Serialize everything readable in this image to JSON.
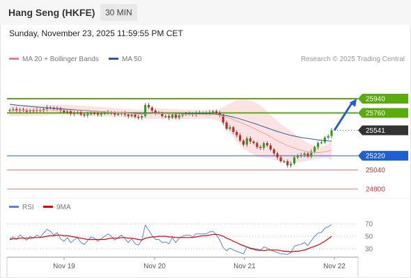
{
  "header": {
    "title": "Hang Seng (HKFE)",
    "timeframe": "30 MIN"
  },
  "datetime": "Sunday, November 23, 2025 11:59:55 PM CET",
  "legend": {
    "bollinger": {
      "label": "MA 20 + Bollinger Bands",
      "color": "#f08080"
    },
    "ma50": {
      "label": "MA 50",
      "color": "#2c5aa0"
    }
  },
  "research_note": "Research © 2025 Trading Central",
  "rsi_legend": {
    "rsi": {
      "label": "RSI",
      "color": "#5a82d6"
    },
    "ma9": {
      "label": "9MA",
      "color": "#e00000"
    }
  },
  "colors": {
    "resistance": "#5aab0c",
    "pivot": "#1f5fd0",
    "support": "#e57373",
    "last": "#333333",
    "candle_up": "#2e9e1e",
    "candle_down": "#c62828",
    "arrow": "#1f5fd0"
  },
  "chart_data": [
    {
      "type": "candlestick",
      "title": "",
      "x_ticks": [
        "Nov 19",
        "Nov 20",
        "Nov 21",
        "Nov 22"
      ],
      "ylim": [
        24750,
        26000
      ],
      "levels": [
        {
          "value": 25940,
          "label": "25940",
          "kind": "resistance"
        },
        {
          "value": 25760,
          "label": "25760",
          "kind": "resistance"
        },
        {
          "value": 25541,
          "label": "25541",
          "kind": "last"
        },
        {
          "value": 25220,
          "label": "25220",
          "kind": "pivot"
        },
        {
          "value": 25040,
          "label": "25040",
          "kind": "support"
        },
        {
          "value": 24800,
          "label": "24800",
          "kind": "support"
        }
      ],
      "close": [
        25800,
        25810,
        25790,
        25805,
        25790,
        25780,
        25795,
        25785,
        25800,
        25790,
        25810,
        25830,
        25825,
        25810,
        25820,
        25790,
        25770,
        25780,
        25750,
        25760,
        25770,
        25740,
        25730,
        25745,
        25760,
        25755,
        25740,
        25750,
        25760,
        25770,
        25760,
        25740,
        25750,
        25760,
        25740,
        25720,
        25740,
        25710,
        25700,
        25720,
        25860,
        25830,
        25790,
        25760,
        25760,
        25720,
        25720,
        25700,
        25740,
        25700,
        25730,
        25740,
        25750,
        25750,
        25740,
        25760,
        25760,
        25760,
        25760,
        25770,
        25780,
        25760,
        25730,
        25640,
        25560,
        25580,
        25520,
        25480,
        25410,
        25360,
        25440,
        25400,
        25380,
        25330,
        25320,
        25380,
        25350,
        25300,
        25250,
        25200,
        25150,
        25150,
        25100,
        25120,
        25200,
        25220,
        25230,
        25250,
        25210,
        25270,
        25330,
        25380,
        25390,
        25450,
        25470,
        25541
      ],
      "ma20": [
        25790,
        25790,
        25791,
        25792,
        25793,
        25793,
        25793,
        25793,
        25793,
        25794,
        25795,
        25797,
        25798,
        25799,
        25800,
        25800,
        25799,
        25798,
        25796,
        25795,
        25793,
        25791,
        25788,
        25785,
        25783,
        25780,
        25778,
        25776,
        25773,
        25771,
        25768,
        25765,
        25763,
        25761,
        25758,
        25755,
        25752,
        25750,
        25747,
        25745,
        25748,
        25750,
        25751,
        25752,
        25752,
        25752,
        25751,
        25750,
        25749,
        25747,
        25746,
        25745,
        25744,
        25743,
        25742,
        25742,
        25742,
        25742,
        25742,
        25743,
        25742,
        25738,
        25731,
        25720,
        25706,
        25693,
        25677,
        25659,
        25642,
        25622,
        25606,
        25588,
        25568,
        25545,
        25523,
        25504,
        25484,
        25460,
        25436,
        25411,
        25387,
        25368,
        25349,
        25331,
        25317,
        25303,
        25290,
        25280,
        25270,
        25263,
        25260,
        25260,
        25263,
        25270,
        25278,
        25290
      ],
      "bb_upper": [
        25860,
        25860,
        25861,
        25862,
        25863,
        25863,
        25862,
        25861,
        25860,
        25860,
        25861,
        25862,
        25863,
        25864,
        25865,
        25865,
        25864,
        25862,
        25860,
        25858,
        25856,
        25853,
        25850,
        25846,
        25843,
        25840,
        25837,
        25834,
        25831,
        25828,
        25825,
        25822,
        25819,
        25816,
        25813,
        25810,
        25807,
        25804,
        25801,
        25799,
        25810,
        25815,
        25817,
        25818,
        25818,
        25817,
        25815,
        25813,
        25811,
        25809,
        25807,
        25805,
        25804,
        25803,
        25802,
        25802,
        25802,
        25802,
        25802,
        25803,
        25804,
        25805,
        25810,
        25830,
        25860,
        25880,
        25900,
        25920,
        25935,
        25940,
        25930,
        25920,
        25900,
        25880,
        25850,
        25820,
        25780,
        25740,
        25700,
        25660,
        25620,
        25590,
        25560,
        25530,
        25500,
        25470,
        25440,
        25410,
        25380,
        25360,
        25345,
        25340,
        25342,
        25350,
        25370,
        25420
      ],
      "bb_lower": [
        25720,
        25720,
        25721,
        25722,
        25723,
        25723,
        25724,
        25725,
        25726,
        25728,
        25729,
        25732,
        25733,
        25734,
        25735,
        25735,
        25734,
        25734,
        25732,
        25732,
        25730,
        25729,
        25726,
        25724,
        25723,
        25720,
        25719,
        25718,
        25715,
        25714,
        25711,
        25708,
        25707,
        25706,
        25703,
        25700,
        25697,
        25696,
        25693,
        25691,
        25686,
        25685,
        25685,
        25686,
        25686,
        25687,
        25687,
        25687,
        25687,
        25685,
        25685,
        25685,
        25684,
        25683,
        25682,
        25682,
        25682,
        25682,
        25682,
        25683,
        25680,
        25671,
        25652,
        25610,
        25552,
        25506,
        25454,
        25398,
        25349,
        25304,
        25282,
        25256,
        25236,
        25210,
        25196,
        25188,
        25188,
        25180,
        25172,
        25162,
        25154,
        25146,
        25138,
        25132,
        25134,
        25136,
        25140,
        25150,
        25160,
        25166,
        25175,
        25180,
        25184,
        25190,
        25186,
        25160
      ],
      "ma50": [
        25870,
        25865,
        25860,
        25855,
        25851,
        25847,
        25843,
        25839,
        25835,
        25831,
        25828,
        25825,
        25822,
        25819,
        25816,
        25813,
        25810,
        25807,
        25804,
        25801,
        25798,
        25795,
        25792,
        25789,
        25786,
        25783,
        25780,
        25777,
        25774,
        25771,
        25768,
        25766,
        25764,
        25762,
        25760,
        25758,
        25757,
        25756,
        25755,
        25754,
        25754,
        25754,
        25754,
        25753,
        25753,
        25753,
        25752,
        25752,
        25751,
        25751,
        25750,
        25750,
        25750,
        25750,
        25750,
        25750,
        25750,
        25750,
        25749,
        25748,
        25747,
        25744,
        25740,
        25734,
        25726,
        25717,
        25707,
        25696,
        25684,
        25671,
        25658,
        25644,
        25630,
        25616,
        25601,
        25586,
        25571,
        25556,
        25541,
        25527,
        25513,
        25500,
        25488,
        25477,
        25468,
        25459,
        25451,
        25444,
        25438,
        25432,
        25426,
        25420,
        25416,
        25412,
        25408,
        25405
      ],
      "forecast_arrow": {
        "from": 25541,
        "to": 25940
      }
    },
    {
      "type": "line",
      "title": "RSI",
      "ylim": [
        20,
        80
      ],
      "y_ticks": [
        70,
        50,
        30
      ],
      "x_ticks": [
        "Nov 19",
        "Nov 20",
        "Nov 21",
        "Nov 22"
      ],
      "series": [
        {
          "name": "RSI",
          "values": [
            46,
            49,
            45,
            52,
            48,
            44,
            50,
            47,
            52,
            49,
            55,
            61,
            58,
            52,
            56,
            46,
            42,
            48,
            40,
            44,
            48,
            40,
            37,
            43,
            49,
            47,
            42,
            46,
            50,
            54,
            50,
            44,
            48,
            52,
            46,
            40,
            46,
            38,
            36,
            44,
            68,
            60,
            51,
            45,
            45,
            40,
            41,
            38,
            48,
            40,
            47,
            50,
            52,
            52,
            49,
            54,
            54,
            54,
            54,
            57,
            58,
            52,
            44,
            32,
            27,
            31,
            28,
            26,
            24,
            22,
            33,
            30,
            29,
            27,
            27,
            33,
            31,
            28,
            26,
            24,
            22,
            22,
            21,
            24,
            34,
            36,
            37,
            40,
            35,
            43,
            50,
            55,
            56,
            63,
            65,
            69
          ]
        },
        {
          "name": "9MA",
          "values": [
            45,
            46,
            46,
            47,
            47,
            47,
            47,
            48,
            48,
            48,
            49,
            50,
            51,
            51,
            52,
            52,
            51,
            51,
            50,
            49,
            48,
            47,
            46,
            45,
            45,
            45,
            45,
            45,
            45,
            46,
            47,
            47,
            47,
            48,
            48,
            47,
            47,
            46,
            45,
            44,
            47,
            48,
            49,
            49,
            50,
            50,
            50,
            49,
            49,
            48,
            48,
            48,
            48,
            48,
            48,
            49,
            50,
            51,
            51,
            52,
            53,
            53,
            52,
            50,
            47,
            45,
            42,
            40,
            37,
            35,
            33,
            31,
            30,
            29,
            28,
            27,
            28,
            28,
            28,
            28,
            27,
            26,
            26,
            25,
            26,
            26,
            27,
            28,
            30,
            32,
            34,
            36,
            39,
            42,
            46,
            50
          ]
        }
      ]
    }
  ]
}
